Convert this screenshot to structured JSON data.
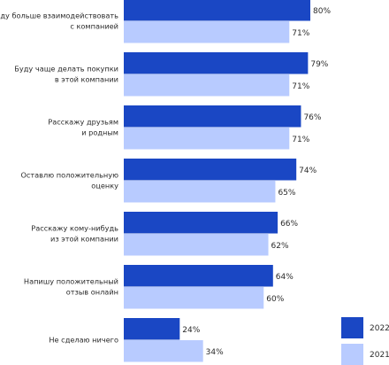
{
  "chart_data": {
    "type": "bar",
    "orientation": "horizontal",
    "title": "",
    "xlabel": "",
    "ylabel": "",
    "xlim": [
      0,
      80
    ],
    "grid": false,
    "legend_position": "bottom-right",
    "categories": [
      [
        "Буду больше взаимодействовать",
        "с компанией"
      ],
      [
        "Буду чаще делать покупки",
        "в этой компании"
      ],
      [
        "Расскажу друзьям",
        "и родным"
      ],
      [
        "Оставлю положительную",
        "оценку"
      ],
      [
        "Расскажу кому-нибудь",
        "из этой компании"
      ],
      [
        "Напишу положительный",
        "отзыв онлайн"
      ],
      [
        "Не сделаю ничего"
      ]
    ],
    "series": [
      {
        "name": "2022",
        "color": "#1a47c4",
        "values": [
          80,
          79,
          76,
          74,
          66,
          64,
          24
        ],
        "labels": [
          "80%",
          "79%",
          "76%",
          "74%",
          "66%",
          "64%",
          "24%"
        ]
      },
      {
        "name": "2021",
        "color": "#b8cbff",
        "values": [
          71,
          71,
          71,
          65,
          62,
          60,
          34
        ],
        "labels": [
          "71%",
          "71%",
          "71%",
          "65%",
          "62%",
          "60%",
          "34%"
        ]
      }
    ]
  }
}
